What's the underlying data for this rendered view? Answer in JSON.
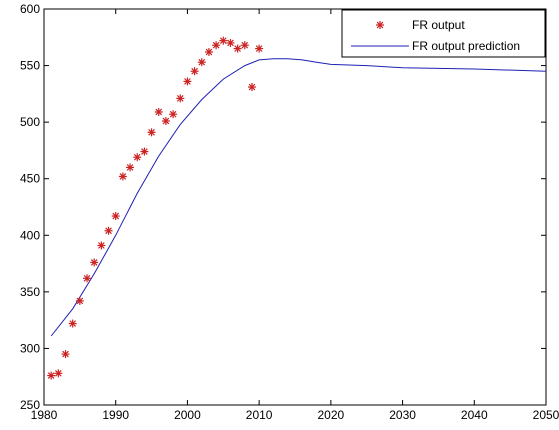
{
  "chart_data": {
    "type": "line",
    "title": "",
    "xlabel": "",
    "ylabel": "",
    "xlim": [
      1980,
      2050
    ],
    "ylim": [
      250,
      600
    ],
    "xticks": [
      1980,
      1990,
      2000,
      2010,
      2020,
      2030,
      2040,
      2050
    ],
    "yticks": [
      250,
      300,
      350,
      400,
      450,
      500,
      550,
      600
    ],
    "grid": false,
    "legend_position": "top-right",
    "series": [
      {
        "name": "FR output",
        "style": "markers",
        "marker": "asterisk",
        "color": "#cc2222",
        "x": [
          1981,
          1982,
          1983,
          1984,
          1985,
          1986,
          1987,
          1988,
          1989,
          1990,
          1991,
          1992,
          1993,
          1994,
          1995,
          1996,
          1997,
          1998,
          1999,
          2000,
          2001,
          2002,
          2003,
          2004,
          2005,
          2006,
          2007,
          2008,
          2009,
          2010
        ],
        "y": [
          276,
          278,
          295,
          322,
          342,
          362,
          376,
          391,
          404,
          417,
          452,
          460,
          469,
          474,
          491,
          509,
          501,
          507,
          521,
          536,
          545,
          553,
          562,
          568,
          572,
          570,
          565,
          568,
          531,
          565
        ]
      },
      {
        "name": "FR output prediction",
        "style": "line",
        "color": "#1f1fb4",
        "x": [
          1981,
          1984,
          1987,
          1990,
          1993,
          1996,
          1999,
          2002,
          2005,
          2008,
          2010,
          2012,
          2014,
          2016,
          2018,
          2020,
          2025,
          2030,
          2040,
          2050
        ],
        "y": [
          311,
          335,
          366,
          400,
          437,
          470,
          498,
          520,
          538,
          550,
          555,
          556,
          556,
          555,
          553,
          551,
          550,
          548,
          547,
          545
        ]
      }
    ]
  }
}
